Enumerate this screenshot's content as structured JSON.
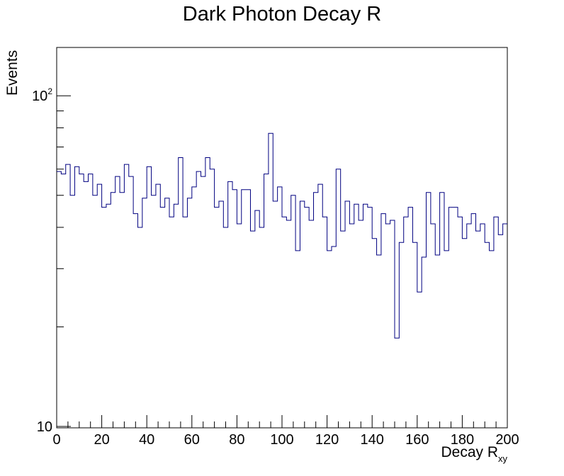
{
  "chart_data": {
    "type": "bar",
    "style": "step-histogram",
    "title": "Dark Photon Decay R",
    "xlabel_main": "Decay R",
    "xlabel_sub": "xy",
    "ylabel": "Events",
    "xlim": [
      0,
      200
    ],
    "ylim": [
      9.9,
      140
    ],
    "log_y": true,
    "bin_width": 2,
    "line_color": "#000080",
    "x_ticks": [
      "0",
      "20",
      "40",
      "60",
      "80",
      "100",
      "120",
      "140",
      "160",
      "180",
      "200"
    ],
    "y_tick_labels": [
      {
        "value": 10,
        "base": "10",
        "exp": ""
      },
      {
        "value": 100,
        "base": "10",
        "exp": "2"
      }
    ],
    "values": [
      59,
      58,
      62,
      50,
      61,
      58,
      55,
      58,
      50,
      54,
      46,
      47,
      51,
      57,
      51,
      62,
      57,
      44,
      40,
      49,
      61,
      50,
      54,
      46,
      49,
      43,
      47,
      65,
      43,
      49,
      53,
      59,
      57,
      65,
      60,
      46,
      48,
      40,
      55,
      52,
      41,
      52,
      52,
      39,
      45,
      40,
      58,
      77,
      48,
      53,
      43,
      42,
      50,
      34,
      48,
      46,
      42,
      51,
      54,
      43,
      34,
      35,
      60,
      39,
      48,
      41,
      47,
      42,
      47,
      46,
      37,
      33,
      44,
      41,
      42,
      18.5,
      36,
      43,
      46,
      36,
      25.5,
      32.5,
      51,
      41,
      33,
      51,
      34,
      46,
      46,
      43,
      37,
      41,
      44,
      39,
      41,
      36,
      34,
      43,
      38,
      41
    ]
  }
}
